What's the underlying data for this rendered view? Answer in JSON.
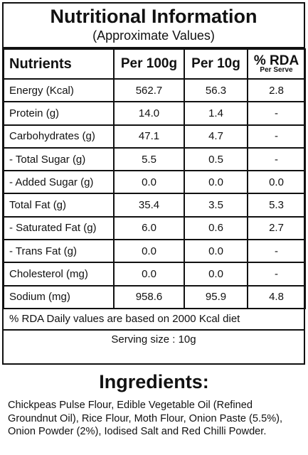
{
  "header": {
    "title": "Nutritional Information",
    "subtitle": "(Approximate Values)"
  },
  "table": {
    "columns": [
      "Nutrients",
      "Per 100g",
      "Per 10g",
      "% RDA"
    ],
    "column_note": "Per Serve",
    "rows": [
      [
        "Energy (Kcal)",
        "562.7",
        "56.3",
        "2.8"
      ],
      [
        "Protein (g)",
        "14.0",
        "1.4",
        "-"
      ],
      [
        "Carbohydrates (g)",
        "47.1",
        "4.7",
        "-"
      ],
      [
        "- Total Sugar (g)",
        "5.5",
        "0.5",
        "-"
      ],
      [
        "- Added Sugar (g)",
        "0.0",
        "0.0",
        "0.0"
      ],
      [
        "Total Fat (g)",
        "35.4",
        "3.5",
        "5.3"
      ],
      [
        "- Saturated Fat (g)",
        "6.0",
        "0.6",
        "2.7"
      ],
      [
        "- Trans Fat (g)",
        "0.0",
        "0.0",
        "-"
      ],
      [
        "Cholesterol (mg)",
        "0.0",
        "0.0",
        "-"
      ],
      [
        "Sodium (mg)",
        "958.6",
        "95.9",
        "4.8"
      ]
    ],
    "footnote": "% RDA Daily values are based on 2000 Kcal diet",
    "serving": "Serving size : 10g"
  },
  "ingredients": {
    "title": "Ingredients:",
    "text": "Chickpeas Pulse Flour, Edible Vegetable Oil (Refined Groundnut Oil), Rice Flour, Moth Flour, Onion Paste (5.5%), Onion Powder (2%), Iodised Salt and Red Chilli Powder."
  }
}
